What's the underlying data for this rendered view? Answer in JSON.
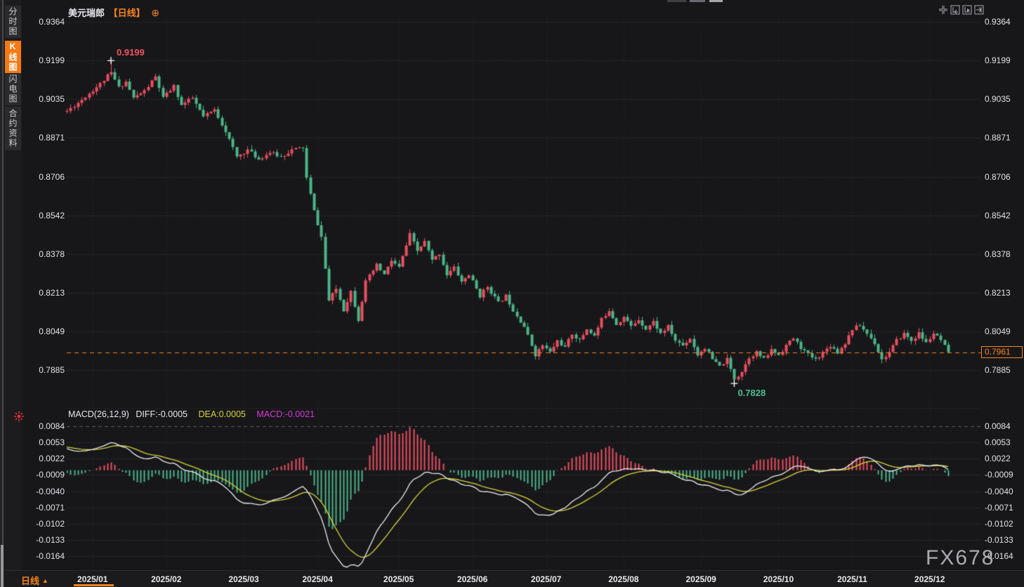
{
  "header": {
    "symbol_name": "美元瑞郎",
    "period_tag": "【日线】",
    "add_icon": "⊕"
  },
  "sidebar": {
    "items": [
      {
        "label": "分时图",
        "selected": false
      },
      {
        "label": "K线图",
        "selected": true
      },
      {
        "label": "闪电图",
        "selected": false
      },
      {
        "label": "合约资料",
        "selected": false
      }
    ]
  },
  "toolbar": {
    "icons": [
      "move-crosshair",
      "fit-left",
      "playback",
      "pan-right"
    ]
  },
  "macd_header": {
    "title": "MACD(26,12,9)",
    "diff_label": "DIFF:-0.0005",
    "dea_label": "DEA:0.0005",
    "macd_label": "MACD:-0.0021"
  },
  "annotations": {
    "high_label": "0.9199",
    "low_label": "0.7828"
  },
  "price_axis": {
    "current_price": "0.7961"
  },
  "bottom_bar": {
    "period_label": "日线",
    "period_arrow": "▲"
  },
  "watermark": "FX678",
  "chart_data": {
    "type": "candlestick",
    "title": "美元瑞郎 日线 (USD/CHF daily)",
    "y_ticks": [
      0.9364,
      0.9199,
      0.9035,
      0.8871,
      0.8706,
      0.8542,
      0.8378,
      0.8213,
      0.8049,
      0.7885
    ],
    "current_price": 0.7961,
    "high_point": {
      "index": 12,
      "price": 0.9199
    },
    "low_point": {
      "index": 181,
      "price": 0.7828
    },
    "num_candles": 240,
    "price_keypoints": [
      [
        0,
        0.8985
      ],
      [
        3,
        0.902
      ],
      [
        6,
        0.906
      ],
      [
        9,
        0.91
      ],
      [
        12,
        0.915
      ],
      [
        14,
        0.9085
      ],
      [
        16,
        0.911
      ],
      [
        18,
        0.904
      ],
      [
        21,
        0.907
      ],
      [
        24,
        0.913
      ],
      [
        26,
        0.904
      ],
      [
        29,
        0.909
      ],
      [
        31,
        0.901
      ],
      [
        34,
        0.904
      ],
      [
        37,
        0.896
      ],
      [
        40,
        0.899
      ],
      [
        43,
        0.89
      ],
      [
        46,
        0.879
      ],
      [
        49,
        0.882
      ],
      [
        52,
        0.878
      ],
      [
        55,
        0.881
      ],
      [
        58,
        0.879
      ],
      [
        61,
        0.882
      ],
      [
        64,
        0.883
      ],
      [
        65,
        0.87
      ],
      [
        67,
        0.856
      ],
      [
        69,
        0.845
      ],
      [
        71,
        0.818
      ],
      [
        73,
        0.823
      ],
      [
        75,
        0.814
      ],
      [
        77,
        0.822
      ],
      [
        79,
        0.81
      ],
      [
        81,
        0.826
      ],
      [
        84,
        0.833
      ],
      [
        86,
        0.829
      ],
      [
        88,
        0.835
      ],
      [
        90,
        0.832
      ],
      [
        93,
        0.846
      ],
      [
        95,
        0.839
      ],
      [
        97,
        0.843
      ],
      [
        99,
        0.835
      ],
      [
        101,
        0.838
      ],
      [
        103,
        0.829
      ],
      [
        105,
        0.832
      ],
      [
        107,
        0.826
      ],
      [
        109,
        0.829
      ],
      [
        112,
        0.82
      ],
      [
        114,
        0.824
      ],
      [
        117,
        0.817
      ],
      [
        119,
        0.82
      ],
      [
        121,
        0.814
      ],
      [
        124,
        0.807
      ],
      [
        127,
        0.795
      ],
      [
        129,
        0.799
      ],
      [
        131,
        0.796
      ],
      [
        133,
        0.801
      ],
      [
        135,
        0.798
      ],
      [
        137,
        0.804
      ],
      [
        139,
        0.801
      ],
      [
        141,
        0.806
      ],
      [
        143,
        0.803
      ],
      [
        145,
        0.81
      ],
      [
        147,
        0.814
      ],
      [
        149,
        0.808
      ],
      [
        151,
        0.811
      ],
      [
        153,
        0.807
      ],
      [
        155,
        0.81
      ],
      [
        157,
        0.806
      ],
      [
        159,
        0.809
      ],
      [
        161,
        0.804
      ],
      [
        163,
        0.807
      ],
      [
        165,
        0.801
      ],
      [
        167,
        0.799
      ],
      [
        169,
        0.802
      ],
      [
        171,
        0.795
      ],
      [
        173,
        0.798
      ],
      [
        175,
        0.793
      ],
      [
        177,
        0.79
      ],
      [
        179,
        0.793
      ],
      [
        181,
        0.7845
      ],
      [
        183,
        0.788
      ],
      [
        185,
        0.794
      ],
      [
        187,
        0.796
      ],
      [
        189,
        0.793
      ],
      [
        191,
        0.797
      ],
      [
        193,
        0.795
      ],
      [
        195,
        0.799
      ],
      [
        197,
        0.802
      ],
      [
        199,
        0.798
      ],
      [
        201,
        0.795
      ],
      [
        203,
        0.793
      ],
      [
        205,
        0.796
      ],
      [
        207,
        0.799
      ],
      [
        209,
        0.796
      ],
      [
        211,
        0.8
      ],
      [
        213,
        0.806
      ],
      [
        215,
        0.8075
      ],
      [
        217,
        0.804
      ],
      [
        219,
        0.8
      ],
      [
        221,
        0.793
      ],
      [
        223,
        0.796
      ],
      [
        225,
        0.801
      ],
      [
        227,
        0.804
      ],
      [
        229,
        0.801
      ],
      [
        231,
        0.804
      ],
      [
        233,
        0.8
      ],
      [
        235,
        0.804
      ],
      [
        237,
        0.801
      ],
      [
        239,
        0.7961
      ]
    ],
    "x_labels": [
      {
        "label": "2025/01",
        "index": 7
      },
      {
        "label": "2025/02",
        "index": 27
      },
      {
        "label": "2025/03",
        "index": 48
      },
      {
        "label": "2025/04",
        "index": 68
      },
      {
        "label": "2025/05",
        "index": 90
      },
      {
        "label": "2025/06",
        "index": 110
      },
      {
        "label": "2025/07",
        "index": 130
      },
      {
        "label": "2025/08",
        "index": 151
      },
      {
        "label": "2025/09",
        "index": 172
      },
      {
        "label": "2025/10",
        "index": 193
      },
      {
        "label": "2025/11",
        "index": 213
      },
      {
        "label": "2025/12",
        "index": 234
      }
    ],
    "macd": {
      "params": [
        26,
        12,
        9
      ],
      "diff": -0.0005,
      "dea": 0.0005,
      "macd": -0.0021,
      "y_ticks": [
        0.0084,
        0.0053,
        0.0022,
        -0.0009,
        -0.004,
        -0.0071,
        -0.0102,
        -0.0133,
        -0.0164
      ]
    },
    "colors": {
      "up": "#ea4f5f",
      "down": "#4cb488",
      "diff_line": "#ededf0",
      "dea_line": "#d6d639",
      "macd_value": "#d03ad0",
      "accent": "#f5821f",
      "grid": "#3d3d42",
      "background": "#17171a"
    }
  }
}
